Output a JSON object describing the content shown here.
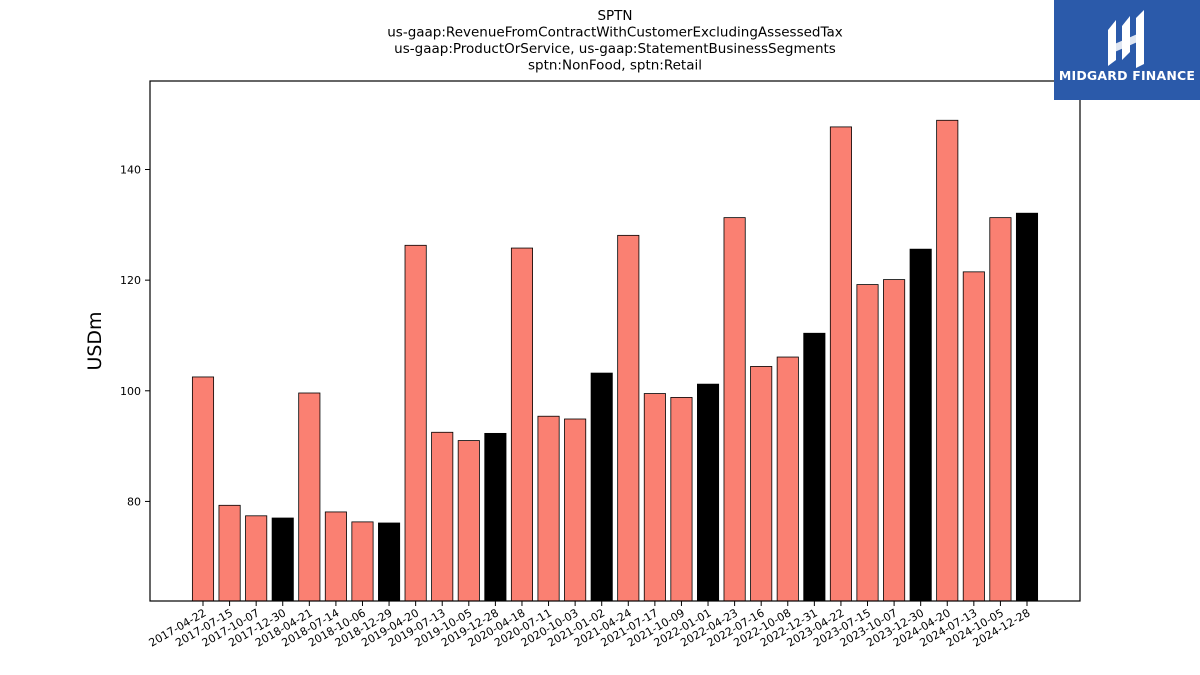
{
  "chart_data": {
    "type": "bar",
    "title": [
      "SPTN",
      "us-gaap:RevenueFromContractWithCustomerExcludingAssessedTax",
      "us-gaap:ProductOrService, us-gaap:StatementBusinessSegments",
      "sptn:NonFood, sptn:Retail"
    ],
    "xlabel": "",
    "ylabel": "USDm",
    "ylim": [
      62,
      156
    ],
    "yticks": [
      80,
      100,
      120,
      140
    ],
    "grid": false,
    "colors": {
      "quarter": "#fa8072",
      "year_end": "#000000",
      "edge": "#000000"
    },
    "categories": [
      "2017-04-22",
      "2017-07-15",
      "2017-10-07",
      "2017-12-30",
      "2018-04-21",
      "2018-07-14",
      "2018-10-06",
      "2018-12-29",
      "2019-04-20",
      "2019-07-13",
      "2019-10-05",
      "2019-12-28",
      "2020-04-18",
      "2020-07-11",
      "2020-10-03",
      "2021-01-02",
      "2021-04-24",
      "2021-07-17",
      "2021-10-09",
      "2022-01-01",
      "2022-04-23",
      "2022-07-16",
      "2022-10-08",
      "2022-12-31",
      "2023-04-22",
      "2023-07-15",
      "2023-10-07",
      "2023-12-30",
      "2024-04-20",
      "2024-07-13",
      "2024-10-05",
      "2024-12-28"
    ],
    "values": [
      102.5,
      79.3,
      77.4,
      77.0,
      99.6,
      78.1,
      76.3,
      76.1,
      126.3,
      92.5,
      91.0,
      92.3,
      125.8,
      95.4,
      94.9,
      103.2,
      128.1,
      99.5,
      98.8,
      101.2,
      131.3,
      104.4,
      106.1,
      110.4,
      147.7,
      119.2,
      120.1,
      125.6,
      148.9,
      121.5,
      131.3,
      132.1
    ],
    "year_end": [
      false,
      false,
      false,
      true,
      false,
      false,
      false,
      true,
      false,
      false,
      false,
      true,
      false,
      false,
      false,
      true,
      false,
      false,
      false,
      true,
      false,
      false,
      false,
      true,
      false,
      false,
      false,
      true,
      false,
      false,
      false,
      true
    ]
  },
  "logo": {
    "text": "MIDGARD FINANCE",
    "icon": "midgard-logo-icon"
  }
}
